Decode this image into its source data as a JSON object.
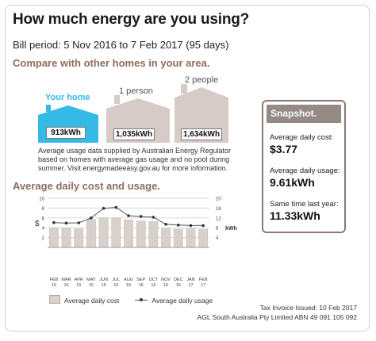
{
  "header": {
    "title": "How much energy are you using?",
    "bill_period": "Bill period: 5 Nov 2016 to 7 Feb 2017 (95 days)",
    "compare_heading": "Compare with other homes in your area."
  },
  "houses": [
    {
      "label": "Your home",
      "value": "913kWh",
      "color": "#35b9e6"
    },
    {
      "label": "1 person",
      "value": "1,035kWh",
      "color": "#d6cbc6"
    },
    {
      "label": "2 people",
      "value": "1,634kWh",
      "color": "#d6cbc6"
    }
  ],
  "note": "Average usage data supplied by Australian Energy Regulator based on homes with average gas usage and no pool during summer. Visit energymadeeasy.gov.au for more information.",
  "avg_heading": "Average daily cost and usage.",
  "snapshot": {
    "title": "Snapshot.",
    "cost_label": "Average daily cost:",
    "cost_value": "$3.77",
    "usage_label": "Average daily usage:",
    "usage_value": "9.61kWh",
    "last_year_label": "Same time last year:",
    "last_year_value": "11.33kWh"
  },
  "chart_data": {
    "type": "bar",
    "categories": [
      "FEB 16",
      "MAR 16",
      "APR 16",
      "MAY 16",
      "JUN 16",
      "JUL 16",
      "AUG 16",
      "SEP 16",
      "OCT 16",
      "NOV 16",
      "DEC 16",
      "JAN 17",
      "FEB 17"
    ],
    "series": [
      {
        "name": "Average daily cost",
        "type": "bar",
        "axis": "left",
        "values": [
          3.9,
          3.9,
          3.8,
          5.7,
          6.0,
          6.0,
          5.6,
          5.4,
          5.3,
          3.8,
          3.7,
          3.8,
          3.7
        ]
      },
      {
        "name": "Average daily usage",
        "type": "line",
        "axis": "right",
        "values": [
          10.1,
          9.9,
          10.0,
          12.0,
          15.9,
          16.3,
          12.9,
          12.6,
          12.3,
          9.4,
          9.1,
          8.9,
          8.9
        ]
      }
    ],
    "y_left_label": "$",
    "y_right_label": "kWh",
    "y_left_ticks": [
      2,
      4,
      6,
      8,
      10
    ],
    "y_right_ticks": [
      4,
      8,
      12,
      16,
      20
    ],
    "y_left_range": [
      0,
      10
    ],
    "y_right_range": [
      0,
      20
    ],
    "grid": true,
    "bar_color": "#d8d0cb",
    "line_color": "#555555"
  },
  "legend": {
    "cost_label": "Average daily cost",
    "usage_label": "Average daily usage"
  },
  "footer": {
    "invoice": "Tax Invoice Issued: 10 Feb 2017",
    "company": "AGL South Australia Pty Limited ABN 49 091 105 092"
  }
}
